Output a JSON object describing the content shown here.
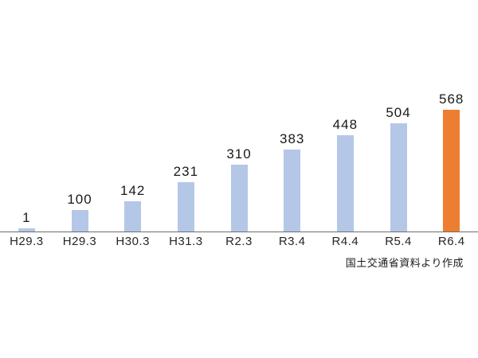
{
  "chart_data": {
    "type": "bar",
    "categories": [
      "H29.3",
      "H29.3",
      "H30.3",
      "H31.3",
      "R2.3",
      "R3.4",
      "R4.4",
      "R5.4",
      "R6.4"
    ],
    "values": [
      1,
      100,
      142,
      231,
      310,
      383,
      448,
      504,
      568
    ],
    "title": "",
    "xlabel": "",
    "ylabel": "",
    "ylim": [
      0,
      568
    ],
    "grid": false,
    "legend": "none",
    "data_labels_shown": true,
    "bar_color_default": "#b4c7e7",
    "bar_color_highlight": "#ed7d31",
    "highlight_index": 8,
    "axis_line_color": "#6e6e6e"
  },
  "source_note": "国土交通省資料より作成"
}
